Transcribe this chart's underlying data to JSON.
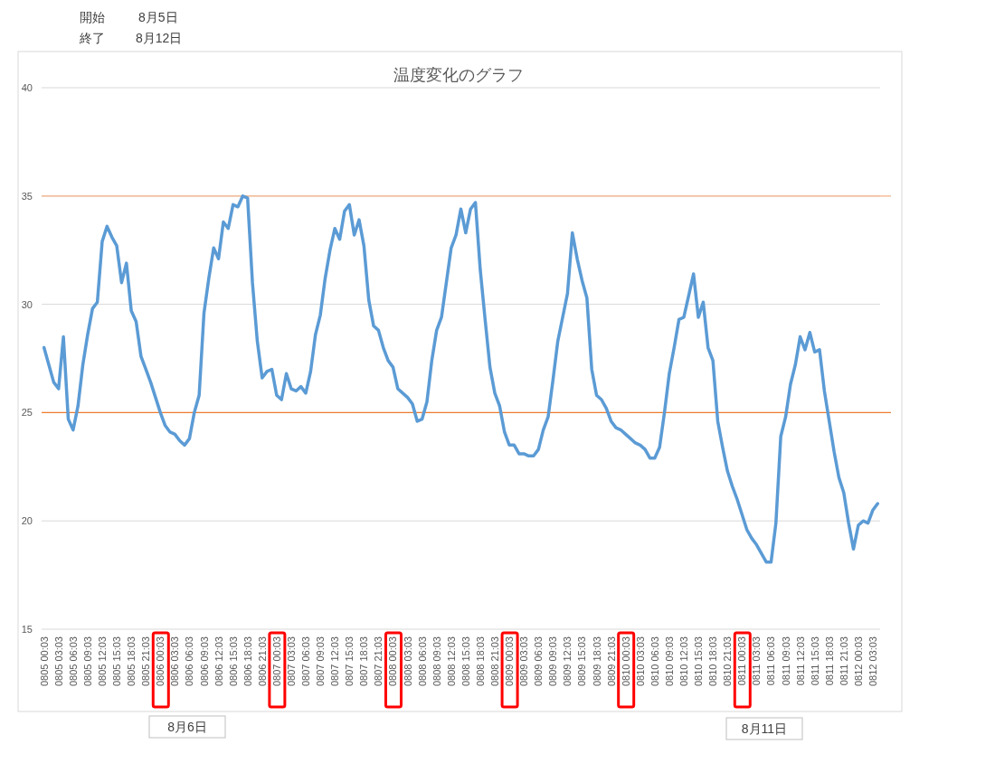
{
  "chart_data": {
    "type": "line",
    "title": "温度変化のグラフ",
    "annotations": [
      "開始",
      "8月5日",
      "終了",
      "8月12日",
      "8月6日",
      "8月11日"
    ],
    "categories": [
      "0805 00:03",
      null,
      null,
      "0805 03:03",
      null,
      null,
      "0805 06:03",
      null,
      null,
      "0805 09:03",
      null,
      null,
      "0805 12:03",
      null,
      null,
      "0805 15:03",
      null,
      null,
      "0805 18:03",
      null,
      null,
      "0805 21:03",
      null,
      null,
      "0806 00:03",
      null,
      null,
      "0806 03:03",
      null,
      null,
      "0806 06:03",
      null,
      null,
      "0806 09:03",
      null,
      null,
      "0806 12:03",
      null,
      null,
      "0806 15:03",
      null,
      null,
      "0806 18:03",
      null,
      null,
      "0806 21:03",
      null,
      null,
      "0807 00:03",
      null,
      null,
      "0807 03:03",
      null,
      null,
      "0807 06:03",
      null,
      null,
      "0807 09:03",
      null,
      null,
      "0807 12:03",
      null,
      null,
      "0807 15:03",
      null,
      null,
      "0807 18:03",
      null,
      null,
      "0807 21:03",
      null,
      null,
      "0808 00:03",
      null,
      null,
      "0808 03:03",
      null,
      null,
      "0808 06:03",
      null,
      null,
      "0808 09:03",
      null,
      null,
      "0808 12:03",
      null,
      null,
      "0808 15:03",
      null,
      null,
      "0808 18:03",
      null,
      null,
      "0808 21:03",
      null,
      null,
      "0809 00:03",
      null,
      null,
      "0809 03:03",
      null,
      null,
      "0809 06:03",
      null,
      null,
      "0809 09:03",
      null,
      null,
      "0809 12:03",
      null,
      null,
      "0809 15:03",
      null,
      null,
      "0809 18:03",
      null,
      null,
      "0809 21:03",
      null,
      null,
      "0810 00:03",
      null,
      null,
      "0810 03:03",
      null,
      null,
      "0810 06:03",
      null,
      null,
      "0810 09:03",
      null,
      null,
      "0810 12:03",
      null,
      null,
      "0810 15:03",
      null,
      null,
      "0810 18:03",
      null,
      null,
      "0810 21:03",
      null,
      null,
      "0811 00:03",
      null,
      null,
      "0811 03:03",
      null,
      null,
      "0811 06:03",
      null,
      null,
      "0811 09:03",
      null,
      null,
      "0811 12:03",
      null,
      null,
      "0811 15:03",
      null,
      null,
      "0811 18:03",
      null,
      null,
      "0811 21:03",
      null,
      null,
      "0812 00:03",
      null,
      null,
      "0812 03:03",
      null
    ],
    "series": [
      {
        "color": "#5b9bd5",
        "values": [
          28.0,
          27.2,
          26.4,
          26.1,
          28.5,
          24.7,
          24.2,
          25.3,
          27.2,
          28.6,
          29.8,
          30.1,
          32.9,
          33.6,
          33.1,
          32.7,
          31.0,
          31.9,
          29.7,
          29.2,
          27.6,
          27.0,
          26.4,
          25.7,
          25.0,
          24.4,
          24.1,
          24.0,
          23.7,
          23.5,
          23.8,
          25.0,
          25.8,
          29.6,
          31.2,
          32.6,
          32.1,
          33.8,
          33.5,
          34.6,
          34.5,
          35.0,
          34.9,
          31.0,
          28.3,
          26.6,
          26.9,
          27.0,
          25.8,
          25.6,
          26.8,
          26.1,
          26.0,
          26.2,
          25.9,
          26.9,
          28.6,
          29.5,
          31.2,
          32.5,
          33.5,
          33.0,
          34.3,
          34.6,
          33.2,
          33.9,
          32.7,
          30.2,
          29.0,
          28.8,
          28.0,
          27.4,
          27.1,
          26.1,
          25.9,
          25.7,
          25.4,
          24.6,
          24.7,
          25.5,
          27.4,
          28.8,
          29.4,
          31.0,
          32.6,
          33.2,
          34.4,
          33.3,
          34.4,
          34.7,
          31.6,
          29.3,
          27.1,
          25.9,
          25.3,
          24.1,
          23.5,
          23.5,
          23.1,
          23.1,
          23.0,
          23.0,
          23.3,
          24.2,
          24.8,
          26.5,
          28.3,
          29.4,
          30.5,
          33.3,
          32.1,
          31.1,
          30.3,
          27.0,
          25.8,
          25.6,
          25.2,
          24.6,
          24.3,
          24.2,
          24.0,
          23.8,
          23.6,
          23.5,
          23.3,
          22.9,
          22.9,
          23.4,
          25.0,
          26.8,
          28.0,
          29.3,
          29.4,
          30.4,
          31.4,
          29.4,
          30.1,
          28.0,
          27.4,
          24.6,
          23.4,
          22.3,
          21.6,
          21.0,
          20.3,
          19.6,
          19.2,
          18.9,
          18.5,
          18.1,
          18.1,
          19.9,
          23.9,
          24.8,
          26.3,
          27.2,
          28.5,
          27.9,
          28.7,
          27.8,
          27.9,
          26.0,
          24.6,
          23.2,
          22.0,
          21.3,
          19.9,
          18.7,
          19.8,
          20.0,
          19.9,
          20.5,
          20.8
        ]
      }
    ],
    "ylim": [
      15,
      40
    ],
    "yticks": [
      15,
      20,
      25,
      30,
      35,
      40
    ],
    "grid": "y",
    "ref_lines": [
      {
        "axis": "y",
        "value": 35,
        "color": "#f4b183"
      },
      {
        "axis": "y",
        "value": 25,
        "color": "#ed7d31"
      }
    ]
  }
}
